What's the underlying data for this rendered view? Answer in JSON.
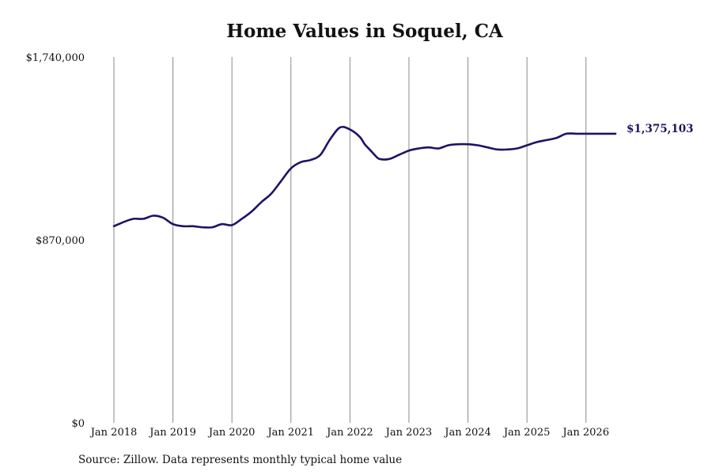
{
  "chart_data": {
    "type": "line",
    "title": "Home Values in Soquel, CA",
    "source": "Source: Zillow. Data represents monthly typical home value",
    "xlabel": "",
    "ylabel": "",
    "ylim": [
      0,
      1740000
    ],
    "y_ticks": [
      {
        "value": 0,
        "label": "$0"
      },
      {
        "value": 870000,
        "label": "$870,000"
      },
      {
        "value": 1740000,
        "label": "$1,740,000"
      }
    ],
    "x_ticks": [
      {
        "date": "2018-01",
        "label": "Jan 2018"
      },
      {
        "date": "2019-01",
        "label": "Jan 2019"
      },
      {
        "date": "2020-01",
        "label": "Jan 2020"
      },
      {
        "date": "2021-01",
        "label": "Jan 2021"
      },
      {
        "date": "2022-01",
        "label": "Jan 2022"
      },
      {
        "date": "2023-01",
        "label": "Jan 2023"
      },
      {
        "date": "2024-01",
        "label": "Jan 2024"
      },
      {
        "date": "2025-01",
        "label": "Jan 2025"
      },
      {
        "date": "2026-01",
        "label": "Jan 2026"
      }
    ],
    "xlim": [
      "2018-01",
      "2026-07"
    ],
    "grid": "vertical",
    "line_color": "#1c1464",
    "end_label": "$1,375,103",
    "series": [
      {
        "x": [
          "2018-01",
          "2018-03",
          "2018-05",
          "2018-07",
          "2018-09",
          "2018-11",
          "2019-01",
          "2019-03",
          "2019-05",
          "2019-07",
          "2019-09",
          "2019-11",
          "2020-01",
          "2020-03",
          "2020-05",
          "2020-07",
          "2020-09",
          "2020-11",
          "2021-01",
          "2021-03",
          "2021-05",
          "2021-07",
          "2021-09",
          "2021-11",
          "2022-01",
          "2022-03",
          "2022-04",
          "2022-05",
          "2022-06",
          "2022-07",
          "2022-09",
          "2022-11",
          "2023-01",
          "2023-03",
          "2023-05",
          "2023-07",
          "2023-09",
          "2023-11",
          "2024-01",
          "2024-03",
          "2024-05",
          "2024-07",
          "2024-09",
          "2024-11",
          "2025-01",
          "2025-03",
          "2025-05",
          "2025-07",
          "2025-09",
          "2025-11",
          "2026-01",
          "2026-03",
          "2026-05",
          "2026-07"
        ],
        "values": [
          935000,
          955000,
          970000,
          970000,
          985000,
          975000,
          945000,
          935000,
          935000,
          930000,
          930000,
          945000,
          940000,
          970000,
          1005000,
          1050000,
          1090000,
          1150000,
          1210000,
          1240000,
          1250000,
          1275000,
          1350000,
          1405000,
          1395000,
          1360000,
          1325000,
          1300000,
          1275000,
          1255000,
          1255000,
          1275000,
          1295000,
          1305000,
          1310000,
          1305000,
          1320000,
          1325000,
          1325000,
          1320000,
          1310000,
          1300000,
          1300000,
          1305000,
          1320000,
          1335000,
          1345000,
          1355000,
          1375103,
          1375103,
          1375103,
          1375103,
          1375103,
          1375103
        ]
      }
    ]
  }
}
